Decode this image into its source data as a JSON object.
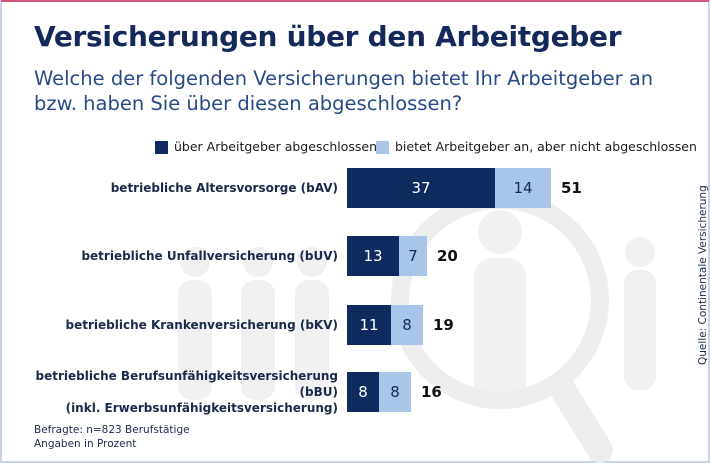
{
  "chart_data": {
    "type": "stacked-bar",
    "title": "Versicherungen über den Arbeitgeber",
    "subtitle": "Welche der folgenden Versicherungen bietet Ihr Arbeitgeber an bzw. haben Sie über diesen abgeschlossen?",
    "categories": [
      "betriebliche Altersvorsorge (bAV)",
      "betriebliche Unfallversicherung (bUV)",
      "betriebliche Krankenversicherung (bKV)",
      "betriebliche Berufsunfähigkeitsversicherung (bBU)\n(inkl. Erwerbsunfähigkeitsversicherung)"
    ],
    "series": [
      {
        "name": "über Arbeitgeber abgeschlossen",
        "color": "#0f2a5f",
        "label_color": "#ffffff",
        "values": [
          37,
          13,
          11,
          8
        ]
      },
      {
        "name": "bietet Arbeitgeber an, aber nicht abgeschlossen",
        "color": "#a9c6e8",
        "label_color": "#14295a",
        "values": [
          14,
          7,
          8,
          8
        ]
      }
    ],
    "totals": [
      51,
      20,
      19,
      16
    ],
    "notes": [
      "Befragte: n=823 Berufstätige",
      "Angaben in Prozent"
    ],
    "source": "Quelle: Continentale Versicherung"
  }
}
